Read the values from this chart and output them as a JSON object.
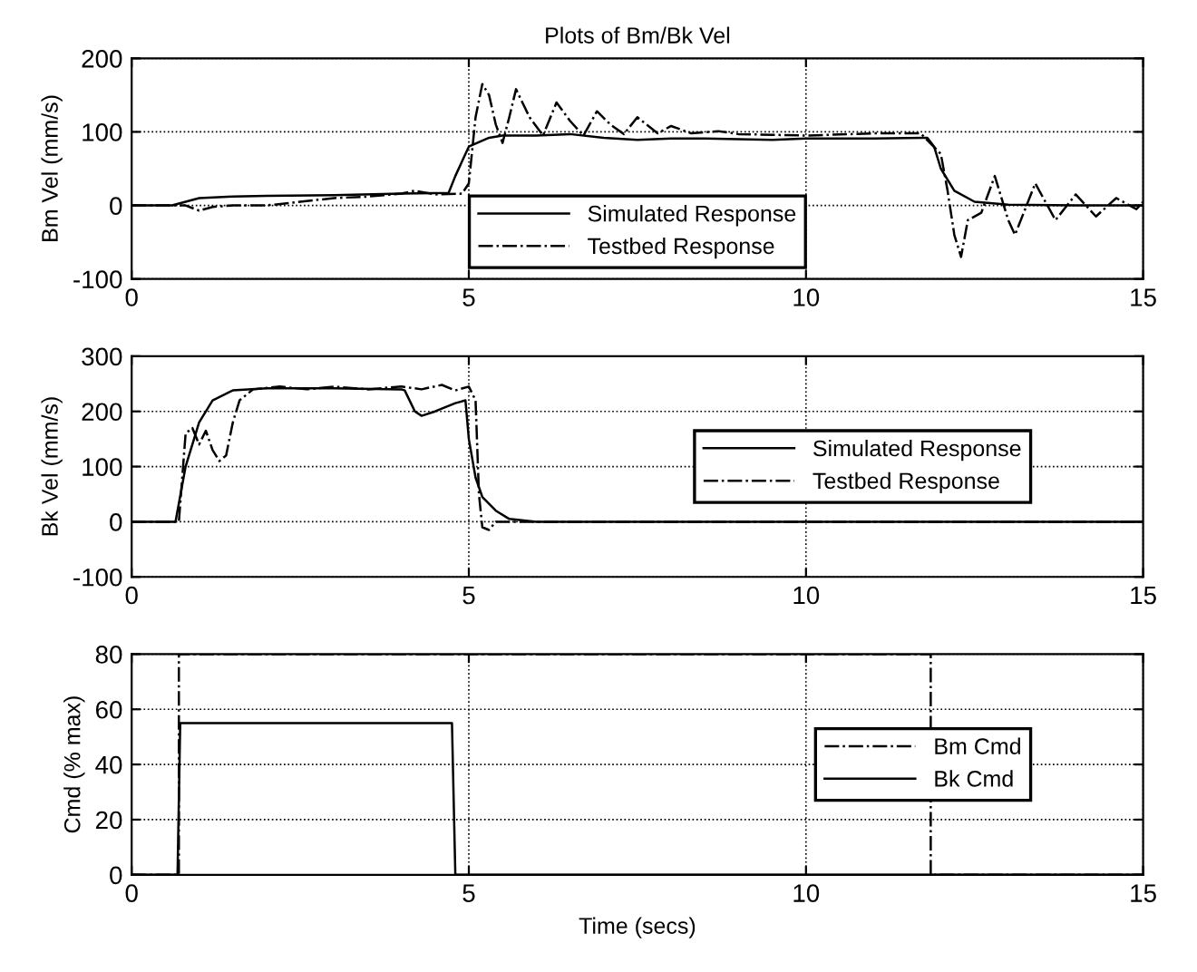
{
  "chart_data": [
    {
      "type": "line",
      "title": "Plots of Bm/Bk Vel",
      "ylabel": "Bm Vel (mm/s)",
      "xlim": [
        0,
        15
      ],
      "xticks": [
        0,
        5,
        10,
        15
      ],
      "ylim": [
        -100,
        200
      ],
      "yticks": [
        -100,
        0,
        100,
        200
      ],
      "grid": true,
      "legend": "bottom",
      "series": [
        {
          "name": "Simulated Response",
          "color": "#000000",
          "line_style": "solid",
          "x": [
            0,
            0.6,
            0.8,
            1,
            1.5,
            2,
            3,
            4,
            4.7,
            4.8,
            5,
            5.3,
            5.5,
            6,
            6.5,
            7,
            7.5,
            8,
            8.5,
            9,
            9.5,
            10,
            11,
            11.8,
            11.9,
            12,
            12.2,
            12.5,
            13,
            14,
            15
          ],
          "values": [
            0,
            0,
            5,
            10,
            12,
            13,
            14,
            16,
            17,
            40,
            80,
            92,
            95,
            95,
            97,
            92,
            89,
            91,
            91,
            90,
            89,
            91,
            91,
            92,
            80,
            50,
            20,
            5,
            1,
            0,
            0
          ]
        },
        {
          "name": "Testbed Response",
          "color": "#000000",
          "line_style": "dashdot",
          "x": [
            0,
            0.8,
            1,
            1.2,
            1.5,
            2,
            2.5,
            3,
            3.5,
            4,
            4.2,
            4.5,
            4.9,
            5,
            5.1,
            5.2,
            5.3,
            5.4,
            5.5,
            5.6,
            5.7,
            5.9,
            6.1,
            6.3,
            6.5,
            6.7,
            6.9,
            7.1,
            7.3,
            7.5,
            7.8,
            8,
            8.3,
            8.7,
            9,
            9.5,
            10,
            11,
            11.7,
            12,
            12.1,
            12.2,
            12.3,
            12.4,
            12.6,
            12.8,
            13,
            13.1,
            13.4,
            13.7,
            14,
            14.3,
            14.6,
            14.9,
            15
          ],
          "values": [
            0,
            0,
            -7,
            -2,
            0,
            0,
            5,
            10,
            12,
            16,
            20,
            15,
            16,
            30,
            120,
            165,
            150,
            110,
            85,
            120,
            158,
            120,
            95,
            140,
            115,
            95,
            128,
            110,
            97,
            120,
            98,
            108,
            98,
            101,
            97,
            96,
            95,
            98,
            98,
            70,
            20,
            -40,
            -70,
            -20,
            -10,
            40,
            -20,
            -40,
            30,
            -20,
            15,
            -15,
            10,
            -5,
            5
          ]
        }
      ]
    },
    {
      "type": "line",
      "ylabel": "Bk Vel (mm/s)",
      "xlim": [
        0,
        15
      ],
      "xticks": [
        0,
        5,
        10,
        15
      ],
      "ylim": [
        -100,
        300
      ],
      "yticks": [
        -100,
        0,
        100,
        200,
        300
      ],
      "grid": true,
      "legend": "right",
      "series": [
        {
          "name": "Simulated Response",
          "color": "#000000",
          "line_style": "solid",
          "x": [
            0,
            0.65,
            0.8,
            1,
            1.2,
            1.5,
            2,
            3,
            4,
            4.05,
            4.2,
            4.3,
            4.5,
            4.8,
            4.95,
            5,
            5.1,
            5.2,
            5.4,
            5.6,
            6,
            15
          ],
          "values": [
            0,
            0,
            100,
            180,
            220,
            238,
            242,
            242,
            240,
            238,
            200,
            192,
            200,
            215,
            220,
            150,
            80,
            45,
            20,
            5,
            0,
            0
          ]
        },
        {
          "name": "Testbed Response",
          "color": "#000000",
          "line_style": "dashdot",
          "x": [
            0,
            0.7,
            0.8,
            0.9,
            1,
            1.1,
            1.2,
            1.3,
            1.4,
            1.5,
            1.6,
            1.8,
            2.2,
            2.6,
            3,
            3.5,
            4,
            4.3,
            4.6,
            4.8,
            5,
            5.1,
            5.15,
            5.2,
            5.3,
            5.4,
            5.6,
            15
          ],
          "values": [
            0,
            0,
            160,
            170,
            140,
            165,
            130,
            110,
            120,
            180,
            220,
            240,
            245,
            240,
            245,
            240,
            245,
            240,
            248,
            238,
            245,
            220,
            50,
            -10,
            -15,
            0,
            0,
            0
          ]
        }
      ]
    },
    {
      "type": "line",
      "ylabel": "Cmd (% max)",
      "xlabel": "Time (secs)",
      "xlim": [
        0,
        15
      ],
      "xticks": [
        0,
        5,
        10,
        15
      ],
      "ylim": [
        0,
        80
      ],
      "yticks": [
        0,
        20,
        40,
        60,
        80
      ],
      "grid": true,
      "legend": "right",
      "series": [
        {
          "name": "Bm Cmd",
          "color": "#000000",
          "line_style": "dashdot",
          "x": [
            0,
            0.7,
            0.7,
            11.85,
            11.85,
            15
          ],
          "values": [
            0,
            0,
            80,
            80,
            0,
            0
          ]
        },
        {
          "name": "Bk Cmd",
          "color": "#000000",
          "line_style": "solid",
          "x": [
            0,
            0.68,
            0.72,
            4.75,
            4.8,
            15
          ],
          "values": [
            0,
            0,
            55,
            55,
            0,
            0
          ]
        }
      ]
    }
  ]
}
